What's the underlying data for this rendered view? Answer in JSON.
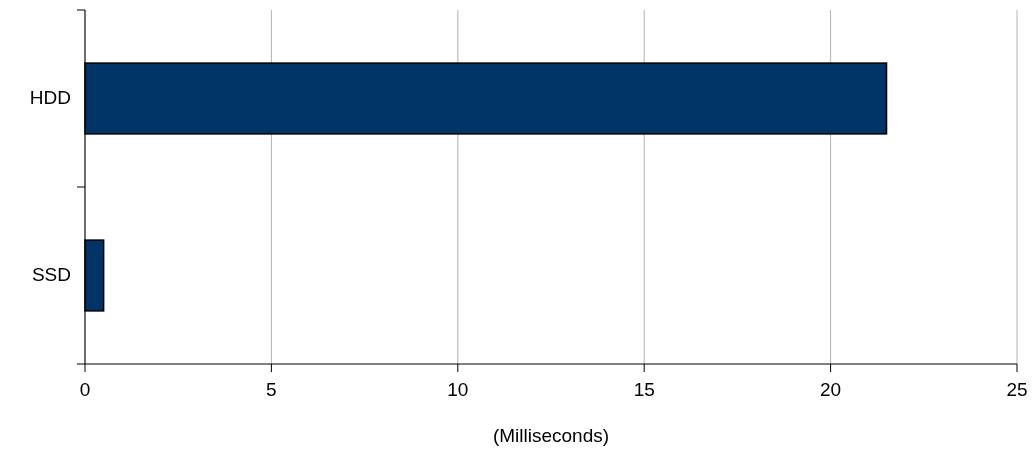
{
  "chart_data": {
    "type": "bar",
    "orientation": "horizontal",
    "categories": [
      "HDD",
      "SSD"
    ],
    "values": [
      21.5,
      0.5
    ],
    "color": "#003366",
    "xlim": [
      0,
      25
    ],
    "xticks": [
      0,
      5,
      10,
      15,
      20,
      25
    ],
    "xlabel": "(Milliseconds)",
    "grid": "x"
  }
}
